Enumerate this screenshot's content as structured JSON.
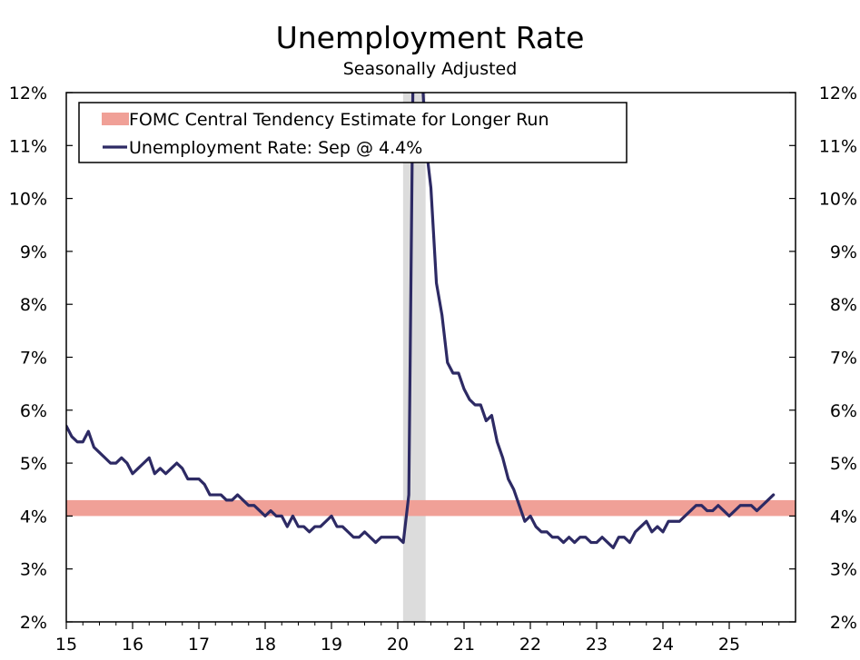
{
  "chart_data": {
    "type": "line",
    "title": "Unemployment Rate",
    "subtitle": "Seasonally Adjusted",
    "xlim": [
      2015,
      2026
    ],
    "ylim": [
      2,
      12
    ],
    "y_tick_labels": [
      "2%",
      "3%",
      "4%",
      "5%",
      "6%",
      "7%",
      "8%",
      "9%",
      "10%",
      "11%",
      "12%"
    ],
    "x_tick_labels": [
      "15",
      "16",
      "17",
      "18",
      "19",
      "20",
      "21",
      "22",
      "23",
      "24",
      "25"
    ],
    "grid": false,
    "legend_placement": "top-left",
    "recession_shading": {
      "start": 2020.08,
      "end": 2020.42,
      "color": "#dcdcdc"
    },
    "band": {
      "name": "FOMC Central Tendency Estimate for Longer Run",
      "low": 4.0,
      "high": 4.3,
      "color": "#f0a097"
    },
    "series": [
      {
        "name": "Unemployment Rate: Sep @ 4.4%",
        "color": "#2d2a64",
        "start": 2015.0,
        "step_months": 1,
        "values": [
          5.7,
          5.5,
          5.4,
          5.4,
          5.6,
          5.3,
          5.2,
          5.1,
          5.0,
          5.0,
          5.1,
          5.0,
          4.8,
          4.9,
          5.0,
          5.1,
          4.8,
          4.9,
          4.8,
          4.9,
          5.0,
          4.9,
          4.7,
          4.7,
          4.7,
          4.6,
          4.4,
          4.4,
          4.4,
          4.3,
          4.3,
          4.4,
          4.3,
          4.2,
          4.2,
          4.1,
          4.0,
          4.1,
          4.0,
          4.0,
          3.8,
          4.0,
          3.8,
          3.8,
          3.7,
          3.8,
          3.8,
          3.9,
          4.0,
          3.8,
          3.8,
          3.7,
          3.6,
          3.6,
          3.7,
          3.6,
          3.5,
          3.6,
          3.6,
          3.6,
          3.6,
          3.5,
          4.4,
          14.8,
          13.3,
          11.1,
          10.2,
          8.4,
          7.8,
          6.9,
          6.7,
          6.7,
          6.4,
          6.2,
          6.1,
          6.1,
          5.8,
          5.9,
          5.4,
          5.1,
          4.7,
          4.5,
          4.2,
          3.9,
          4.0,
          3.8,
          3.7,
          3.7,
          3.6,
          3.6,
          3.5,
          3.6,
          3.5,
          3.6,
          3.6,
          3.5,
          3.5,
          3.6,
          3.5,
          3.4,
          3.6,
          3.6,
          3.5,
          3.7,
          3.8,
          3.9,
          3.7,
          3.8,
          3.7,
          3.9,
          3.9,
          3.9,
          4.0,
          4.1,
          4.2,
          4.2,
          4.1,
          4.1,
          4.2,
          4.1,
          4.0,
          4.1,
          4.2,
          4.2,
          4.2,
          4.1,
          4.2,
          4.3,
          4.4
        ]
      }
    ]
  }
}
